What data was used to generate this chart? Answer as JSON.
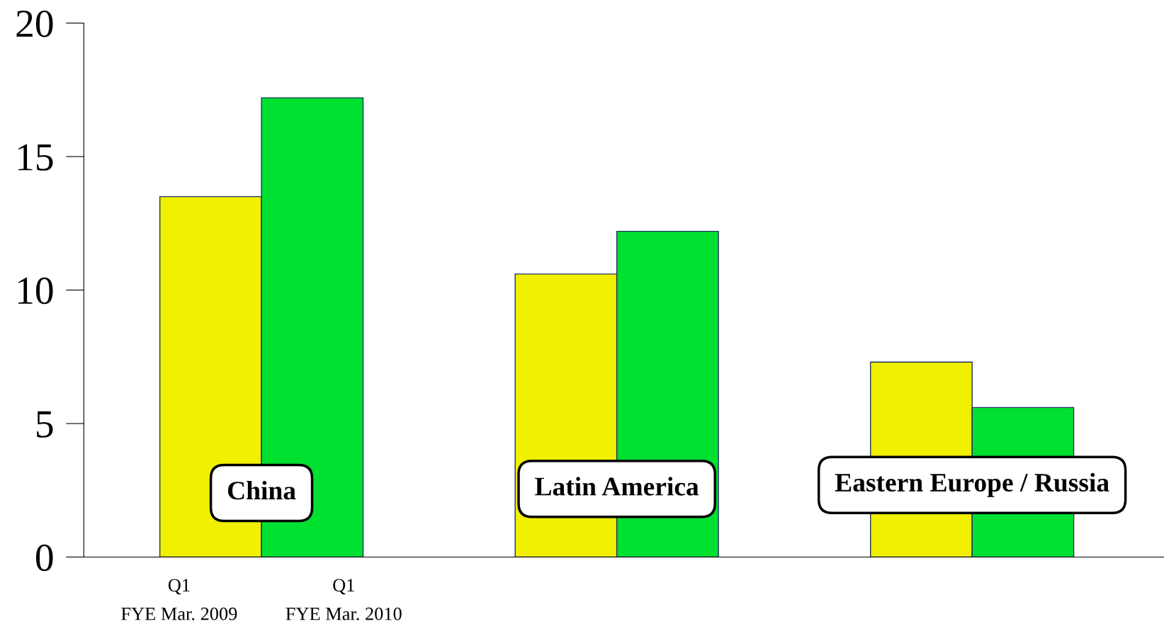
{
  "chart_data": {
    "type": "bar",
    "categories": [
      "China",
      "Latin America",
      "Eastern Europe / Russia"
    ],
    "series": [
      {
        "name": "Q1\nFYE Mar. 2009",
        "color": "#f0f000",
        "values": [
          13.5,
          10.6,
          7.3
        ]
      },
      {
        "name": "Q1\nFYE Mar. 2010",
        "color": "#00e030",
        "values": [
          17.2,
          12.2,
          5.6
        ]
      }
    ],
    "ylim": [
      0,
      20
    ],
    "yticks": [
      0,
      5,
      10,
      15,
      20
    ],
    "grid": false,
    "legend": false
  }
}
